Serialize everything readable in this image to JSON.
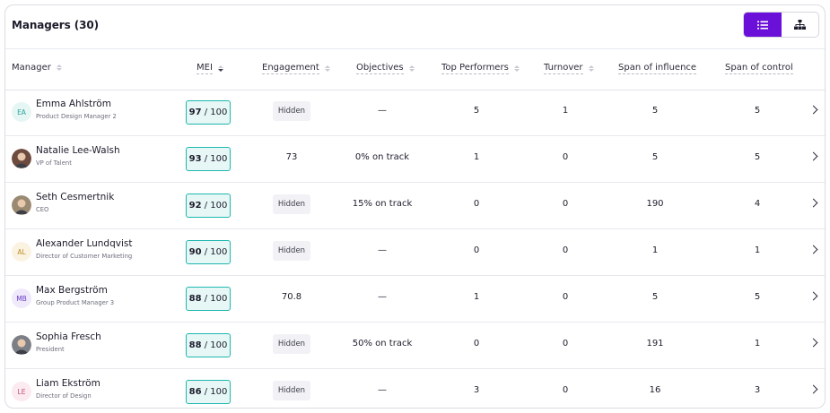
{
  "header": {
    "title": "Managers (30)"
  },
  "view_toggle": {
    "active": "list"
  },
  "columns": {
    "manager": "Manager",
    "mei": "MEI",
    "engagement": "Engagement",
    "objectives": "Objectives",
    "top_performers": "Top Performers",
    "turnover": "Turnover",
    "span_influence": "Span of influence",
    "span_control": "Span of control"
  },
  "rows": [
    {
      "initials": "EA",
      "avatar_type": "initials",
      "avatar_color": "#e6f6f4",
      "initials_color": "#29a39b",
      "name": "Emma Ahlström",
      "role": "Product Design Manager 2",
      "mei_score": "97",
      "mei_total": "/ 100",
      "engagement": "Hidden",
      "engagement_hidden": true,
      "objectives": "—",
      "top_performers": "5",
      "turnover": "1",
      "span_influence": "5",
      "span_control": "5"
    },
    {
      "initials": "",
      "avatar_type": "photo",
      "avatar_color": "#6d4b3e",
      "initials_color": "",
      "name": "Natalie Lee-Walsh",
      "role": "VP of Talent",
      "mei_score": "93",
      "mei_total": "/ 100",
      "engagement": "73",
      "engagement_hidden": false,
      "objectives": "0% on track",
      "top_performers": "1",
      "turnover": "0",
      "span_influence": "5",
      "span_control": "5"
    },
    {
      "initials": "",
      "avatar_type": "photo",
      "avatar_color": "#9a8a72",
      "initials_color": "",
      "name": "Seth Cesmertnik",
      "role": "CEO",
      "mei_score": "92",
      "mei_total": "/ 100",
      "engagement": "Hidden",
      "engagement_hidden": true,
      "objectives": "15% on track",
      "top_performers": "0",
      "turnover": "0",
      "span_influence": "190",
      "span_control": "4"
    },
    {
      "initials": "AL",
      "avatar_type": "initials",
      "avatar_color": "#fbf3e2",
      "initials_color": "#c08b2a",
      "name": "Alexander Lundqvist",
      "role": "Director of Customer Marketing",
      "mei_score": "90",
      "mei_total": "/ 100",
      "engagement": "Hidden",
      "engagement_hidden": true,
      "objectives": "—",
      "top_performers": "0",
      "turnover": "0",
      "span_influence": "1",
      "span_control": "1"
    },
    {
      "initials": "MB",
      "avatar_type": "initials",
      "avatar_color": "#efe9fb",
      "initials_color": "#6b3fc9",
      "name": "Max Bergström",
      "role": "Group Product Manager 3",
      "mei_score": "88",
      "mei_total": "/ 100",
      "engagement": "70.8",
      "engagement_hidden": false,
      "objectives": "—",
      "top_performers": "1",
      "turnover": "0",
      "span_influence": "5",
      "span_control": "5"
    },
    {
      "initials": "",
      "avatar_type": "photo",
      "avatar_color": "#7d7f86",
      "initials_color": "",
      "name": "Sophia Fresch",
      "role": "President",
      "mei_score": "88",
      "mei_total": "/ 100",
      "engagement": "Hidden",
      "engagement_hidden": true,
      "objectives": "50% on track",
      "top_performers": "0",
      "turnover": "0",
      "span_influence": "191",
      "span_control": "1"
    },
    {
      "initials": "LE",
      "avatar_type": "initials",
      "avatar_color": "#fbeaf0",
      "initials_color": "#c8507a",
      "name": "Liam Ekström",
      "role": "Director of Design",
      "mei_score": "86",
      "mei_total": "/ 100",
      "engagement": "Hidden",
      "engagement_hidden": true,
      "objectives": "—",
      "top_performers": "3",
      "turnover": "0",
      "span_influence": "16",
      "span_control": "3"
    }
  ],
  "colors": {
    "accent": "#6b10d8",
    "mei_border": "#1fb7b0",
    "mei_bg": "#e7f7f6"
  }
}
